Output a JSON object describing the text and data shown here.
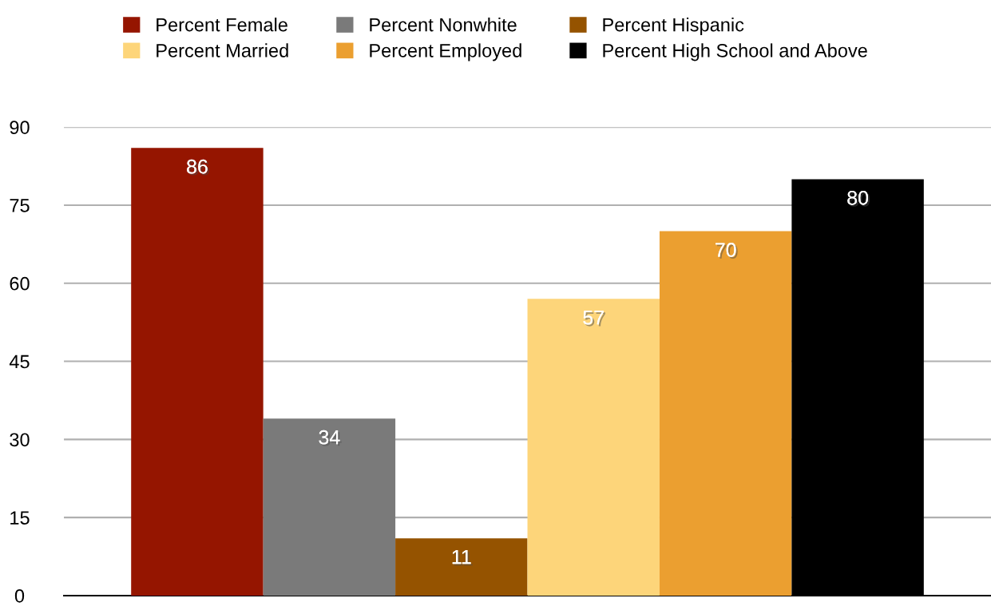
{
  "chart_data": {
    "type": "bar",
    "categories": [
      null
    ],
    "series": [
      {
        "name": "Percent Female",
        "color": "#951500",
        "values": [
          86
        ]
      },
      {
        "name": "Percent Nonwhite",
        "color": "#7a7a7a",
        "values": [
          34
        ]
      },
      {
        "name": "Percent Hispanic",
        "color": "#955300",
        "values": [
          11
        ]
      },
      {
        "name": "Percent Married",
        "color": "#fdd57a",
        "values": [
          57
        ]
      },
      {
        "name": "Percent Employed",
        "color": "#eb9f30",
        "values": [
          70
        ]
      },
      {
        "name": "Percent High School and Above",
        "color": "#000000",
        "values": [
          80
        ]
      }
    ],
    "ylim": [
      0,
      90
    ],
    "yticks": [
      0,
      15,
      30,
      45,
      60,
      75,
      90
    ],
    "grid": "y",
    "legend": "top",
    "data_labels": true
  }
}
